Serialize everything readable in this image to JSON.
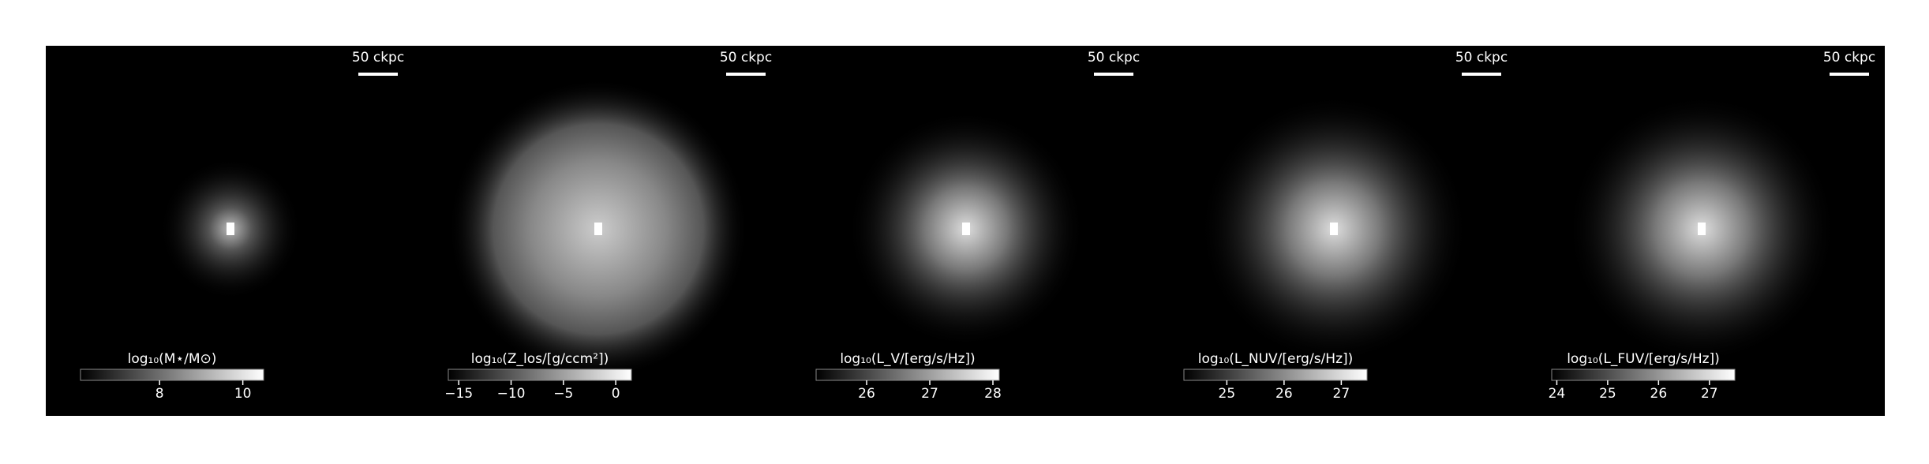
{
  "chart_data": [
    {
      "type": "image",
      "scalebar": "50 ckpc",
      "colorbar_label": "log₁₀(M⋆/M⊙)",
      "clim": [
        6.1,
        10.5
      ],
      "cticks": [
        8,
        10
      ],
      "cmap": "gray"
    },
    {
      "type": "image",
      "scalebar": "50 ckpc",
      "colorbar_label": "log₁₀(Z_los/[g/ccm²])",
      "clim": [
        -16,
        1.5
      ],
      "cticks": [
        {
          "value": -15,
          "label": "−15"
        },
        {
          "value": -10,
          "label": "−10"
        },
        {
          "value": -5,
          "label": "−5"
        },
        0
      ],
      "cmap": "gray"
    },
    {
      "type": "image",
      "scalebar": "50 ckpc",
      "colorbar_label": "log₁₀(L_V/[erg/s/Hz])",
      "clim": [
        25.2,
        28.1
      ],
      "cticks": [
        26,
        27,
        28
      ],
      "cmap": "gray"
    },
    {
      "type": "image",
      "scalebar": "50 ckpc",
      "colorbar_label": "log₁₀(L_NUV/[erg/s/Hz])",
      "clim": [
        24.25,
        27.45
      ],
      "cticks": [
        25,
        26,
        27
      ],
      "cmap": "gray"
    },
    {
      "type": "image",
      "scalebar": "50 ckpc",
      "colorbar_label": "log₁₀(L_FUV/[erg/s/Hz])",
      "clim": [
        23.9,
        27.5
      ],
      "cticks": [
        24,
        25,
        26,
        27
      ],
      "cmap": "gray"
    }
  ]
}
